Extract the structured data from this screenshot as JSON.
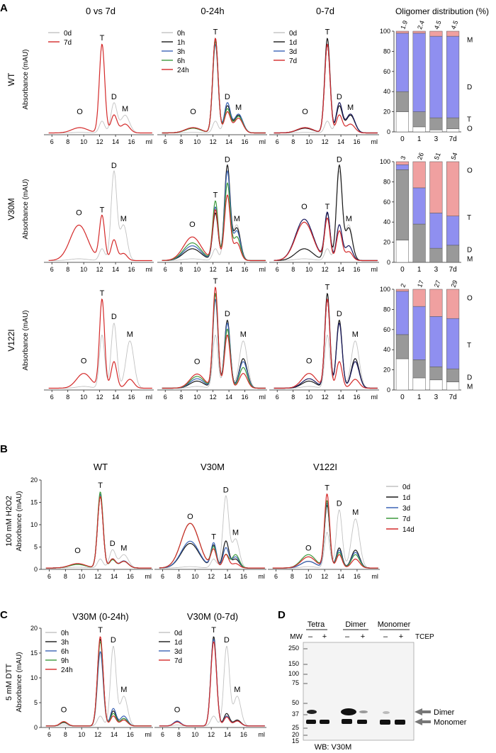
{
  "figure": {
    "panel_labels": {
      "A": "A",
      "B": "B",
      "C": "C",
      "D": "D"
    },
    "colors": {
      "gray": "#c2c2c2",
      "black": "#1a1a1a",
      "blue": "#3b64b5",
      "green": "#3d9a3d",
      "red": "#d42a2a",
      "navy": "#1a1a5e",
      "tetramer": "#8f8ff0",
      "oligomer": "#f0a0a0",
      "dimer": "#999999",
      "monomer": "#ffffff"
    }
  },
  "panel_a": {
    "column_titles": [
      "0 vs 7d",
      "0-24h",
      "0-7d",
      "Oligomer distribution (%)"
    ],
    "row_labels": [
      "WT",
      "V30M",
      "V122I"
    ],
    "ylabel": "Absorbance (mAU)",
    "x_ticks": [
      "6",
      "8",
      "10",
      "12",
      "14",
      "16"
    ],
    "x_unit": "ml",
    "legends": {
      "col0": [
        "0d",
        "7d"
      ],
      "col1": [
        "0h",
        "1h",
        "3h",
        "6h",
        "24h"
      ],
      "col2": [
        "0d",
        "1d",
        "3d",
        "7d"
      ]
    },
    "peak_labels": {
      "O": "O",
      "T": "T",
      "D": "D",
      "M": "M"
    }
  },
  "panel_b": {
    "titles": [
      "WT",
      "V30M",
      "V122I"
    ],
    "ylabel_line1": "100 mM H2O2",
    "ylabel_line2": "Absorbance (mAU)",
    "y_ticks": [
      "0",
      "5",
      "10",
      "15",
      "20"
    ],
    "x_ticks": [
      "6",
      "8",
      "10",
      "12",
      "14",
      "16"
    ],
    "x_unit": "ml",
    "legend": [
      "0d",
      "1d",
      "3d",
      "7d",
      "14d"
    ]
  },
  "panel_c": {
    "titles": [
      "V30M (0-24h)",
      "V30M (0-7d)"
    ],
    "ylabel_line1": "5 mM DTT",
    "ylabel_line2": "Absorbance (mAU)",
    "y_ticks": [
      "0",
      "5",
      "10",
      "15",
      "20"
    ],
    "x_ticks": [
      "6",
      "8",
      "10",
      "12",
      "14",
      "16"
    ],
    "x_unit": "ml",
    "legends": [
      [
        "0h",
        "3h",
        "6h",
        "9h",
        "24h"
      ],
      [
        "0d",
        "1d",
        "3d",
        "7d"
      ]
    ]
  },
  "panel_d": {
    "group_labels": [
      "Tetra",
      "Dimer",
      "Monomer"
    ],
    "mw_label": "MW",
    "signs": [
      "–",
      "+",
      "–",
      "+",
      "–",
      "+"
    ],
    "tcep_label": "TCEP",
    "mw_markers": [
      "250",
      "150",
      "100",
      "75",
      "50",
      "37",
      "25",
      "20",
      "15"
    ],
    "arrow_labels": [
      "Dimer",
      "Monomer"
    ],
    "footer": "WB: V30M"
  },
  "chart_data": [
    {
      "type": "bar",
      "title": "Oligomer distribution (%) – WT",
      "categories": [
        "0",
        "1",
        "3",
        "7d"
      ],
      "top_labels": [
        "1.9",
        "2.4",
        "4.5",
        "4.5"
      ],
      "stack_labels": [
        "M",
        "D",
        "T",
        "O"
      ],
      "ylim": [
        0,
        100
      ],
      "y_ticks": [
        "0",
        "20",
        "40",
        "60",
        "80",
        "100"
      ],
      "series": [
        {
          "name": "M",
          "values": [
            20,
            5,
            2,
            3
          ]
        },
        {
          "name": "D",
          "values": [
            20,
            15,
            12,
            11
          ]
        },
        {
          "name": "T",
          "values": [
            58,
            78,
            81,
            81
          ]
        },
        {
          "name": "O",
          "values": [
            2,
            2,
            5,
            5
          ]
        }
      ]
    },
    {
      "type": "bar",
      "title": "Oligomer distribution (%) – V30M",
      "categories": [
        "0",
        "1",
        "3",
        "7d"
      ],
      "top_labels": [
        "3",
        "26",
        "51",
        "54"
      ],
      "stack_labels": [
        "O",
        "T",
        "D",
        "M"
      ],
      "ylim": [
        0,
        100
      ],
      "y_ticks": [
        "0",
        "20",
        "40",
        "60",
        "80",
        "100"
      ],
      "series": [
        {
          "name": "M",
          "values": [
            22,
            0,
            0,
            0
          ]
        },
        {
          "name": "D",
          "values": [
            70,
            38,
            14,
            17
          ]
        },
        {
          "name": "T",
          "values": [
            5,
            36,
            35,
            29
          ]
        },
        {
          "name": "O",
          "values": [
            3,
            26,
            51,
            54
          ]
        }
      ]
    },
    {
      "type": "bar",
      "title": "Oligomer distribution (%) – V122I",
      "categories": [
        "0",
        "1",
        "3",
        "7d"
      ],
      "top_labels": [
        "2",
        "17",
        "27",
        "29"
      ],
      "stack_labels": [
        "O",
        "T",
        "D",
        "M"
      ],
      "ylim": [
        0,
        100
      ],
      "y_ticks": [
        "0",
        "20",
        "40",
        "60",
        "80",
        "100"
      ],
      "series": [
        {
          "name": "M",
          "values": [
            31,
            12,
            10,
            8
          ]
        },
        {
          "name": "D",
          "values": [
            24,
            18,
            13,
            13
          ]
        },
        {
          "name": "T",
          "values": [
            43,
            53,
            50,
            50
          ]
        },
        {
          "name": "O",
          "values": [
            2,
            17,
            27,
            29
          ]
        }
      ]
    }
  ]
}
